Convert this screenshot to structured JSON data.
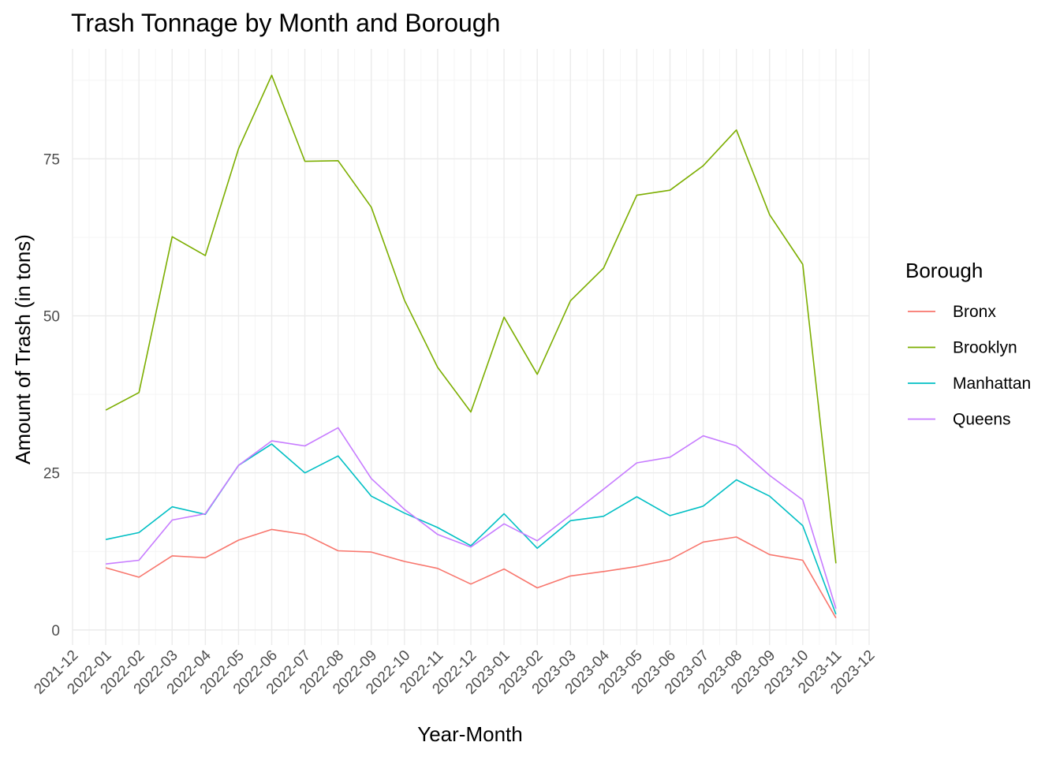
{
  "chart_data": {
    "type": "line",
    "title": "Trash Tonnage by Month and Borough",
    "xlabel": "Year-Month",
    "ylabel": "Amount of Trash (in tons)",
    "x_tick_labels": [
      "2021-12",
      "2022-01",
      "2022-02",
      "2022-03",
      "2022-04",
      "2022-05",
      "2022-06",
      "2022-07",
      "2022-08",
      "2022-09",
      "2022-10",
      "2022-11",
      "2022-12",
      "2023-01",
      "2023-02",
      "2023-03",
      "2023-04",
      "2023-05",
      "2023-06",
      "2023-07",
      "2023-08",
      "2023-09",
      "2023-10",
      "2023-11",
      "2023-12"
    ],
    "categories": [
      "2022-01",
      "2022-02",
      "2022-03",
      "2022-04",
      "2022-05",
      "2022-06",
      "2022-07",
      "2022-08",
      "2022-09",
      "2022-10",
      "2022-11",
      "2022-12",
      "2023-01",
      "2023-02",
      "2023-03",
      "2023-04",
      "2023-05",
      "2023-06",
      "2023-07",
      "2023-08",
      "2023-09",
      "2023-10",
      "2023-11"
    ],
    "y_ticks": [
      0,
      25,
      50,
      75
    ],
    "y_tick_labels": [
      "0",
      "25",
      "50",
      "75"
    ],
    "ylim": [
      -2.4,
      92.5
    ],
    "grid": true,
    "legend": {
      "title": "Borough",
      "position": "right"
    },
    "series": [
      {
        "name": "Bronx",
        "color": "#F8766D",
        "values": [
          9.9,
          8.4,
          11.8,
          11.5,
          14.3,
          16.0,
          15.2,
          12.6,
          12.4,
          10.9,
          9.8,
          7.3,
          9.7,
          6.7,
          8.6,
          9.3,
          10.1,
          11.2,
          14.0,
          14.8,
          12.0,
          11.1,
          1.9
        ]
      },
      {
        "name": "Brooklyn",
        "color": "#7CAE00",
        "values": [
          35.0,
          37.8,
          62.6,
          59.6,
          76.6,
          88.3,
          74.6,
          74.7,
          67.3,
          52.5,
          41.8,
          34.7,
          49.8,
          40.7,
          52.4,
          57.6,
          69.2,
          70.0,
          73.9,
          79.6,
          66.1,
          58.2,
          10.6
        ]
      },
      {
        "name": "Manhattan",
        "color": "#00BFC4",
        "values": [
          14.4,
          15.5,
          19.6,
          18.4,
          26.2,
          29.6,
          25.0,
          27.7,
          21.3,
          18.6,
          16.3,
          13.4,
          18.5,
          13.0,
          17.4,
          18.1,
          21.2,
          18.2,
          19.7,
          23.9,
          21.3,
          16.6,
          2.5
        ]
      },
      {
        "name": "Queens",
        "color": "#C77CFF",
        "values": [
          10.5,
          11.1,
          17.5,
          18.5,
          26.2,
          30.1,
          29.3,
          32.2,
          24.1,
          19.2,
          15.2,
          13.2,
          16.9,
          14.2,
          18.3,
          22.4,
          26.6,
          27.5,
          30.9,
          29.3,
          24.6,
          20.7,
          3.4
        ]
      }
    ]
  }
}
